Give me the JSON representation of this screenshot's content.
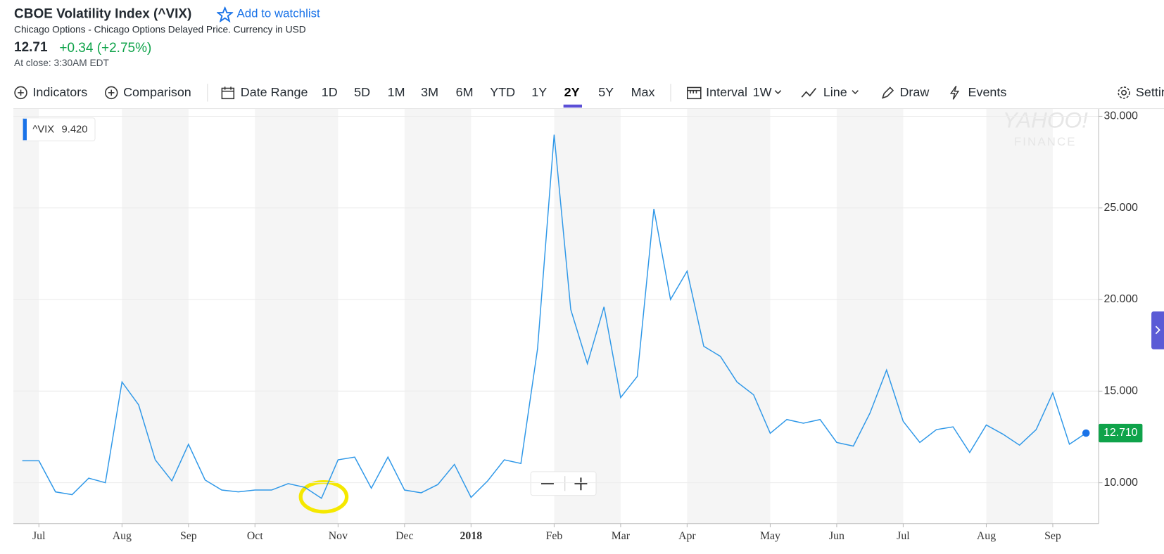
{
  "header": {
    "title": "CBOE Volatility Index (^VIX)",
    "watchlist": "Add to watchlist",
    "subtitle": "Chicago Options - Chicago Options Delayed Price. Currency in USD",
    "price": "12.71",
    "change": "+0.34 (+2.75%)",
    "close_time": "At close: 3:30AM EDT"
  },
  "toolbar": {
    "indicators": "Indicators",
    "comparison": "Comparison",
    "date_range": "Date Range",
    "ranges": [
      "1D",
      "5D",
      "1M",
      "3M",
      "6M",
      "YTD",
      "1Y",
      "2Y",
      "5Y",
      "Max"
    ],
    "interval": "Interval",
    "interval_value": "1W",
    "line": "Line",
    "draw": "Draw",
    "events": "Events",
    "settings": "Settings"
  },
  "hover_box": {
    "symbol": "^VIX",
    "price": "9.420"
  },
  "watermark": {
    "line1": "YAHOO!",
    "line2": "FINANCE"
  },
  "chart_data": {
    "type": "line",
    "categories": [
      null,
      "Jul",
      null,
      null,
      null,
      null,
      "Aug",
      null,
      null,
      null,
      "Sep",
      null,
      null,
      null,
      "Oct",
      null,
      null,
      null,
      null,
      "Nov",
      null,
      null,
      null,
      "Dec",
      null,
      null,
      null,
      "2018",
      null,
      null,
      null,
      null,
      "Feb",
      null,
      null,
      null,
      "Mar",
      null,
      null,
      null,
      "Apr",
      null,
      null,
      null,
      null,
      "May",
      null,
      null,
      null,
      "Jun",
      null,
      null,
      null,
      "Jul",
      null,
      null,
      null,
      null,
      "Aug",
      null,
      null,
      null,
      "Sep",
      null,
      null
    ],
    "series": [
      {
        "name": "^VIX",
        "color": "#2f98e8",
        "values": [
          11.2,
          11.2,
          9.5,
          9.35,
          10.25,
          10.0,
          15.5,
          14.25,
          11.25,
          10.1,
          12.1,
          10.15,
          9.6,
          9.5,
          9.6,
          9.6,
          9.95,
          9.75,
          9.15,
          11.25,
          11.4,
          9.7,
          11.4,
          9.6,
          9.45,
          9.9,
          11.0,
          9.2,
          10.1,
          11.25,
          11.05,
          17.3,
          29.0,
          19.45,
          16.5,
          19.6,
          14.65,
          15.8,
          24.95,
          20.0,
          21.55,
          17.45,
          16.9,
          15.5,
          14.8,
          12.7,
          13.45,
          13.25,
          13.45,
          12.2,
          12.0,
          13.8,
          16.15,
          13.35,
          12.2,
          12.9,
          13.05,
          11.65,
          13.15,
          12.65,
          12.05,
          12.9,
          14.9,
          12.1,
          12.71
        ]
      }
    ],
    "last_price_label": "12.710",
    "last_price_color": "#0fa34a",
    "ylim": [
      7.77,
      30.4
    ],
    "yticks": [
      {
        "value": 10,
        "label": "10.000"
      },
      {
        "value": 15,
        "label": "15.000"
      },
      {
        "value": 20,
        "label": "20.000"
      },
      {
        "value": 25,
        "label": "25.000"
      },
      {
        "value": 30,
        "label": "30.000"
      }
    ],
    "grid": true
  }
}
